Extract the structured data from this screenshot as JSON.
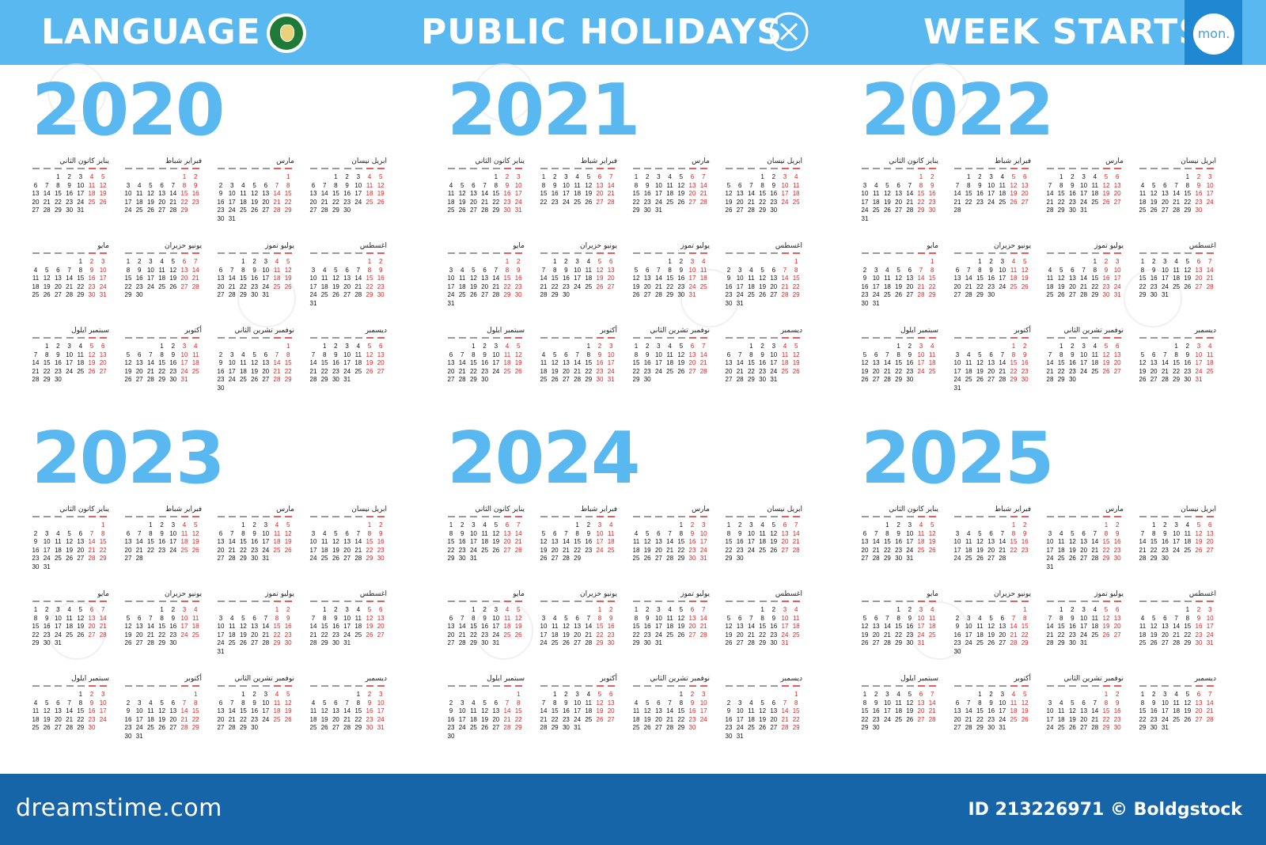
{
  "header": {
    "language_label": "LANGUAGE",
    "holidays_label": "PUBLIC HOLIDAYS",
    "week_starts_label": "WEEK STARTS",
    "week_start_value": "mon."
  },
  "colors": {
    "accent": "#5ab8f0",
    "dark_accent": "#1e88d2",
    "footer": "#1565a8",
    "weekend": "#dd2222"
  },
  "icons": {
    "language": "arabic-league-flag-icon",
    "holidays": "x-circle-icon"
  },
  "month_names": [
    "يناير كانون الثاني",
    "فبراير شباط",
    "مارس",
    "ابريل نيسان",
    "مايو",
    "يونيو حزيران",
    "يوليو تموز",
    "اغسطس",
    "سبتمبر ايلول",
    "أكتوبر",
    "نوفمبر تشرين الثاني",
    "ديسمبر"
  ],
  "years": [
    {
      "year": "2020"
    },
    {
      "year": "2021"
    },
    {
      "year": "2022"
    },
    {
      "year": "2023"
    },
    {
      "year": "2024"
    },
    {
      "year": "2025"
    }
  ],
  "footer": {
    "logo": "dreamstime.com",
    "id_text": "ID 213226971 © Boldgstock"
  }
}
